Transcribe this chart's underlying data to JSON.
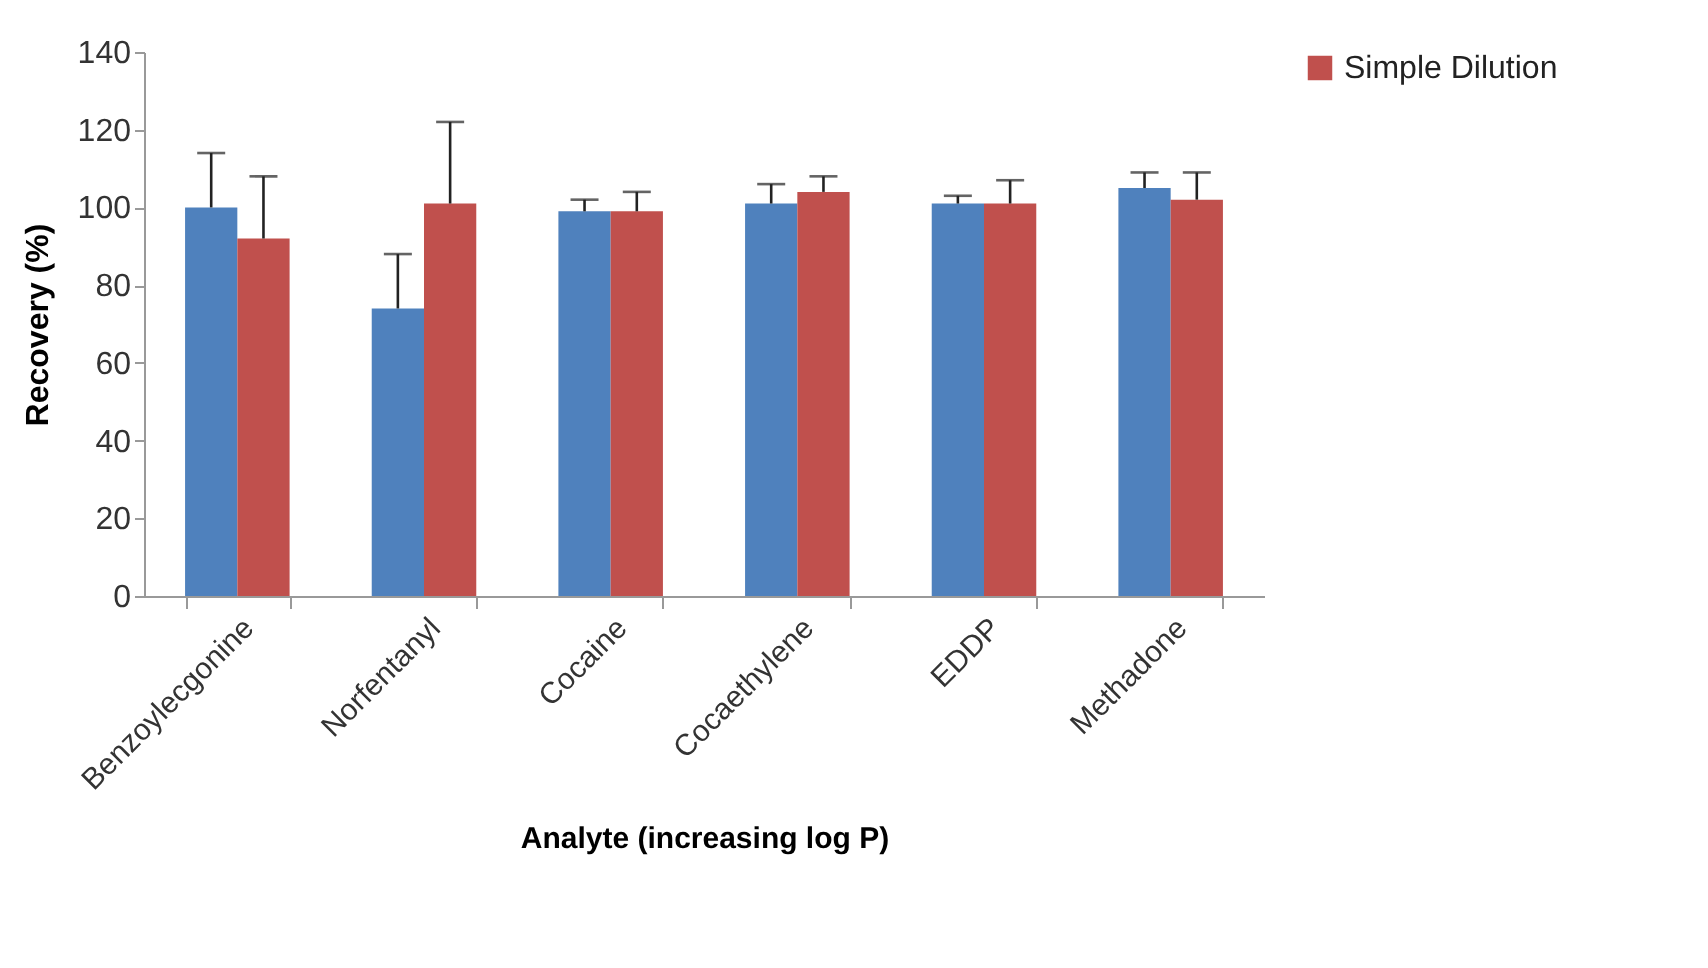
{
  "chart_data": {
    "type": "bar",
    "xlabel": "Analyte (increasing log P)",
    "ylabel": "Recovery (%)",
    "categories": [
      "Benzoylecgonine",
      "Norfentanyl",
      "Cocaine",
      "Cocaethylene",
      "EDDP",
      "Methadone"
    ],
    "series": [
      {
        "color": "#4f81bd",
        "values": [
          100,
          74,
          99,
          101,
          101,
          105
        ],
        "errors": [
          [
            100,
            114
          ],
          [
            74,
            88
          ],
          [
            99,
            102
          ],
          [
            101,
            106
          ],
          [
            101,
            103
          ],
          [
            105,
            109
          ]
        ]
      },
      {
        "name": "Simple Dilution",
        "color": "#c0504d",
        "values": [
          92,
          101,
          99,
          104,
          101,
          102
        ],
        "errors": [
          [
            92,
            108
          ],
          [
            101,
            122
          ],
          [
            99,
            104
          ],
          [
            104,
            108
          ],
          [
            101,
            107
          ],
          [
            102,
            109
          ]
        ]
      }
    ],
    "ylim": [
      0,
      140
    ],
    "yticks": [
      0,
      20,
      40,
      60,
      80,
      100,
      120,
      140
    ],
    "grid": false,
    "legend": "right"
  }
}
